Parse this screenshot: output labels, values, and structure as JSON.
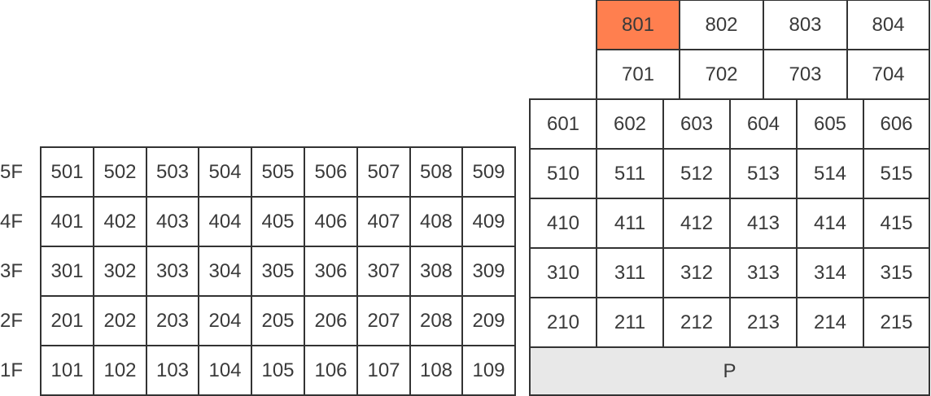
{
  "highlight_color": "#FF7F4F",
  "parking_color": "#E8E8E8",
  "selected_room": "801",
  "floor_labels": [
    "5F",
    "4F",
    "3F",
    "2F",
    "1F"
  ],
  "left_building": [
    [
      "501",
      "502",
      "503",
      "504",
      "505",
      "506",
      "507",
      "508",
      "509"
    ],
    [
      "401",
      "402",
      "403",
      "404",
      "405",
      "406",
      "407",
      "408",
      "409"
    ],
    [
      "301",
      "302",
      "303",
      "304",
      "305",
      "306",
      "307",
      "308",
      "309"
    ],
    [
      "201",
      "202",
      "203",
      "204",
      "205",
      "206",
      "207",
      "208",
      "209"
    ],
    [
      "101",
      "102",
      "103",
      "104",
      "105",
      "106",
      "107",
      "108",
      "109"
    ]
  ],
  "right_tower": [
    [
      "801",
      "802",
      "803",
      "804"
    ],
    [
      "701",
      "702",
      "703",
      "704"
    ]
  ],
  "right_building": [
    [
      "601",
      "602",
      "603",
      "604",
      "605",
      "606"
    ],
    [
      "510",
      "511",
      "512",
      "513",
      "514",
      "515"
    ],
    [
      "410",
      "411",
      "412",
      "413",
      "414",
      "415"
    ],
    [
      "310",
      "311",
      "312",
      "313",
      "314",
      "315"
    ],
    [
      "210",
      "211",
      "212",
      "213",
      "214",
      "215"
    ]
  ],
  "parking_label": "P"
}
